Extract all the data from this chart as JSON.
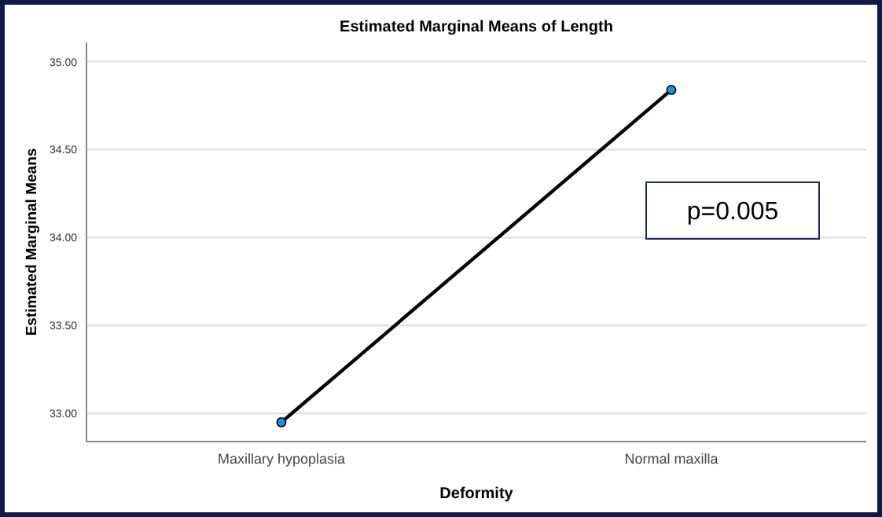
{
  "chart_data": {
    "type": "line",
    "title": "Estimated Marginal Means of Length",
    "xlabel": "Deformity",
    "ylabel": "Estimated Marginal Means",
    "categories": [
      "Maxillary hypoplasia",
      "Normal maxilla"
    ],
    "series": [
      {
        "color": "#000000",
        "values": [
          32.95,
          34.84
        ]
      }
    ],
    "ylim": [
      32.84,
      35.11
    ],
    "yticks": [
      {
        "value": 33,
        "label": "33.00"
      },
      {
        "value": 33.5,
        "label": "33.50"
      },
      {
        "value": 34,
        "label": "34.00"
      },
      {
        "value": 34.5,
        "label": "34.50"
      },
      {
        "value": 35,
        "label": "35.00"
      }
    ],
    "grid": "y",
    "marker": "circle",
    "line_style": "solid",
    "annotations": [
      "p=0.005"
    ]
  }
}
